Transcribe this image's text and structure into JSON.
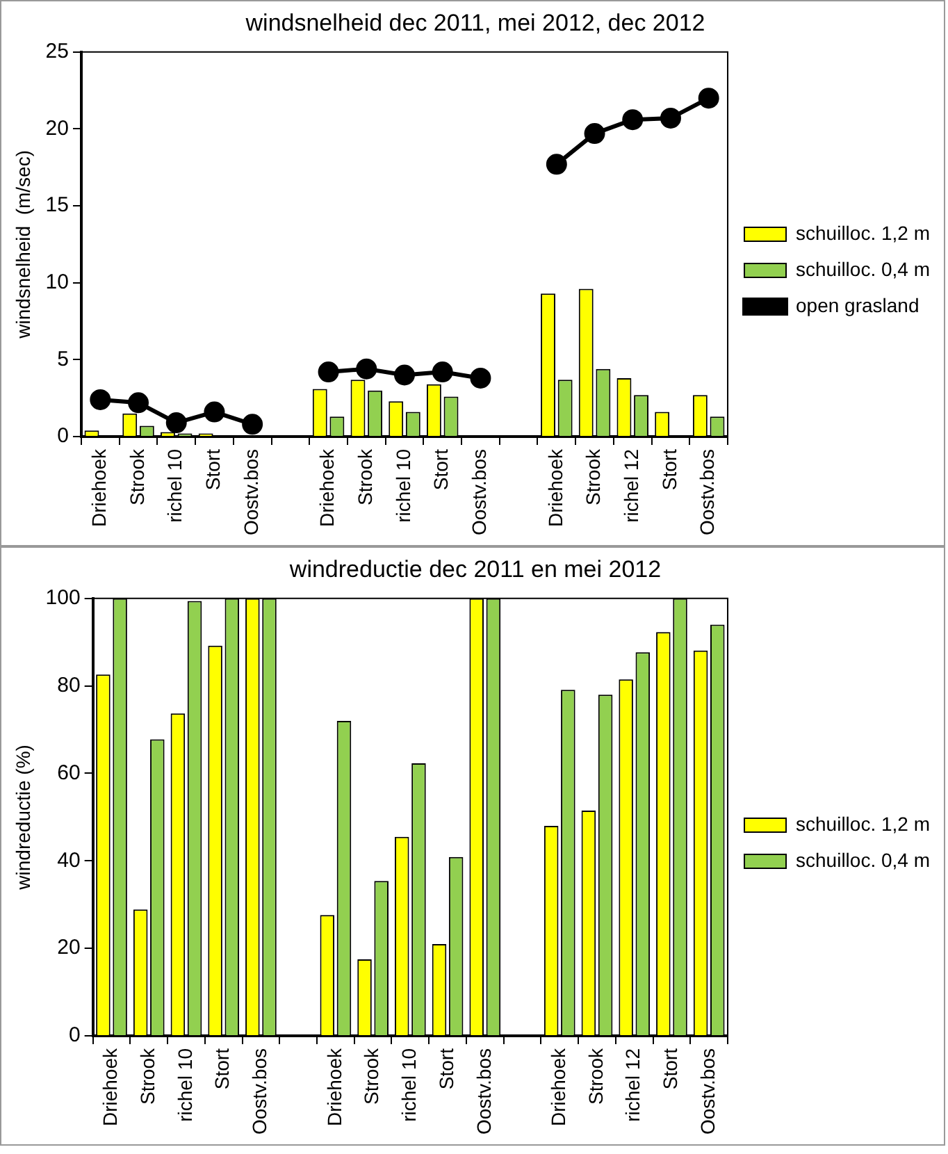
{
  "chart_data": [
    {
      "type": "bar",
      "title": "windsnelheid dec 2011, mei 2012, dec 2012",
      "ylabel": "windsnelheid  (m/sec)",
      "categories": [
        "Driehoek",
        "Strook",
        "richel 10",
        "Stort",
        "Oostv.bos",
        null,
        "Driehoek",
        "Strook",
        "richel 10",
        "Stort",
        "Oostv.bos",
        null,
        "Driehoek",
        "Strook",
        "richel 12",
        "Stort",
        "Oostv.bos"
      ],
      "series": [
        {
          "name": "schuilloc. 1,2 m",
          "color": "#ffff00",
          "values": [
            0.4,
            1.5,
            0.3,
            0.2,
            null,
            null,
            3.1,
            3.7,
            2.3,
            3.4,
            null,
            null,
            9.3,
            9.6,
            3.8,
            1.6,
            2.7
          ]
        },
        {
          "name": "schuilloc. 0,4 m",
          "color": "#92d050",
          "values": [
            null,
            0.7,
            0.2,
            null,
            null,
            null,
            1.3,
            3.0,
            1.6,
            2.6,
            null,
            null,
            3.7,
            4.4,
            2.7,
            null,
            1.3
          ]
        },
        {
          "name": "open grasland",
          "type": "line",
          "color": "#000000",
          "values": [
            2.4,
            2.2,
            0.9,
            1.6,
            0.8,
            null,
            4.2,
            4.4,
            4.0,
            4.2,
            3.8,
            null,
            17.7,
            19.7,
            20.6,
            20.7,
            22.0
          ]
        }
      ],
      "ylim": [
        0,
        25
      ],
      "yticks": [
        0,
        5,
        10,
        15,
        20,
        25
      ],
      "legend": "right",
      "marker": "circle",
      "line_style": "solid"
    },
    {
      "type": "bar",
      "title": "windreductie dec 2011 en mei 2012",
      "ylabel": "windreductie (%)",
      "categories": [
        "Driehoek",
        "Strook",
        "richel 10",
        "Stort",
        "Oostv.bos",
        null,
        "Driehoek",
        "Strook",
        "richel 10",
        "Stort",
        "Oostv.bos",
        null,
        "Driehoek",
        "Strook",
        "richel 12",
        "Stort",
        "Oostv.bos"
      ],
      "series": [
        {
          "name": "schuilloc. 1,2 m",
          "color": "#ffff00",
          "values": [
            82.6,
            28.9,
            73.7,
            89.2,
            100,
            null,
            27.6,
            17.5,
            45.5,
            21,
            100,
            null,
            48,
            51.5,
            81.5,
            92.3,
            88.1
          ]
        },
        {
          "name": "schuilloc. 0,4 m",
          "color": "#92d050",
          "values": [
            100,
            67.8,
            99.4,
            100,
            100,
            null,
            72,
            35.4,
            62.3,
            40.9,
            100,
            null,
            79.1,
            78,
            87.7,
            100,
            94
          ]
        }
      ],
      "ylim": [
        0,
        100
      ],
      "yticks": [
        0,
        20,
        40,
        60,
        80,
        100
      ],
      "legend": "right"
    }
  ]
}
